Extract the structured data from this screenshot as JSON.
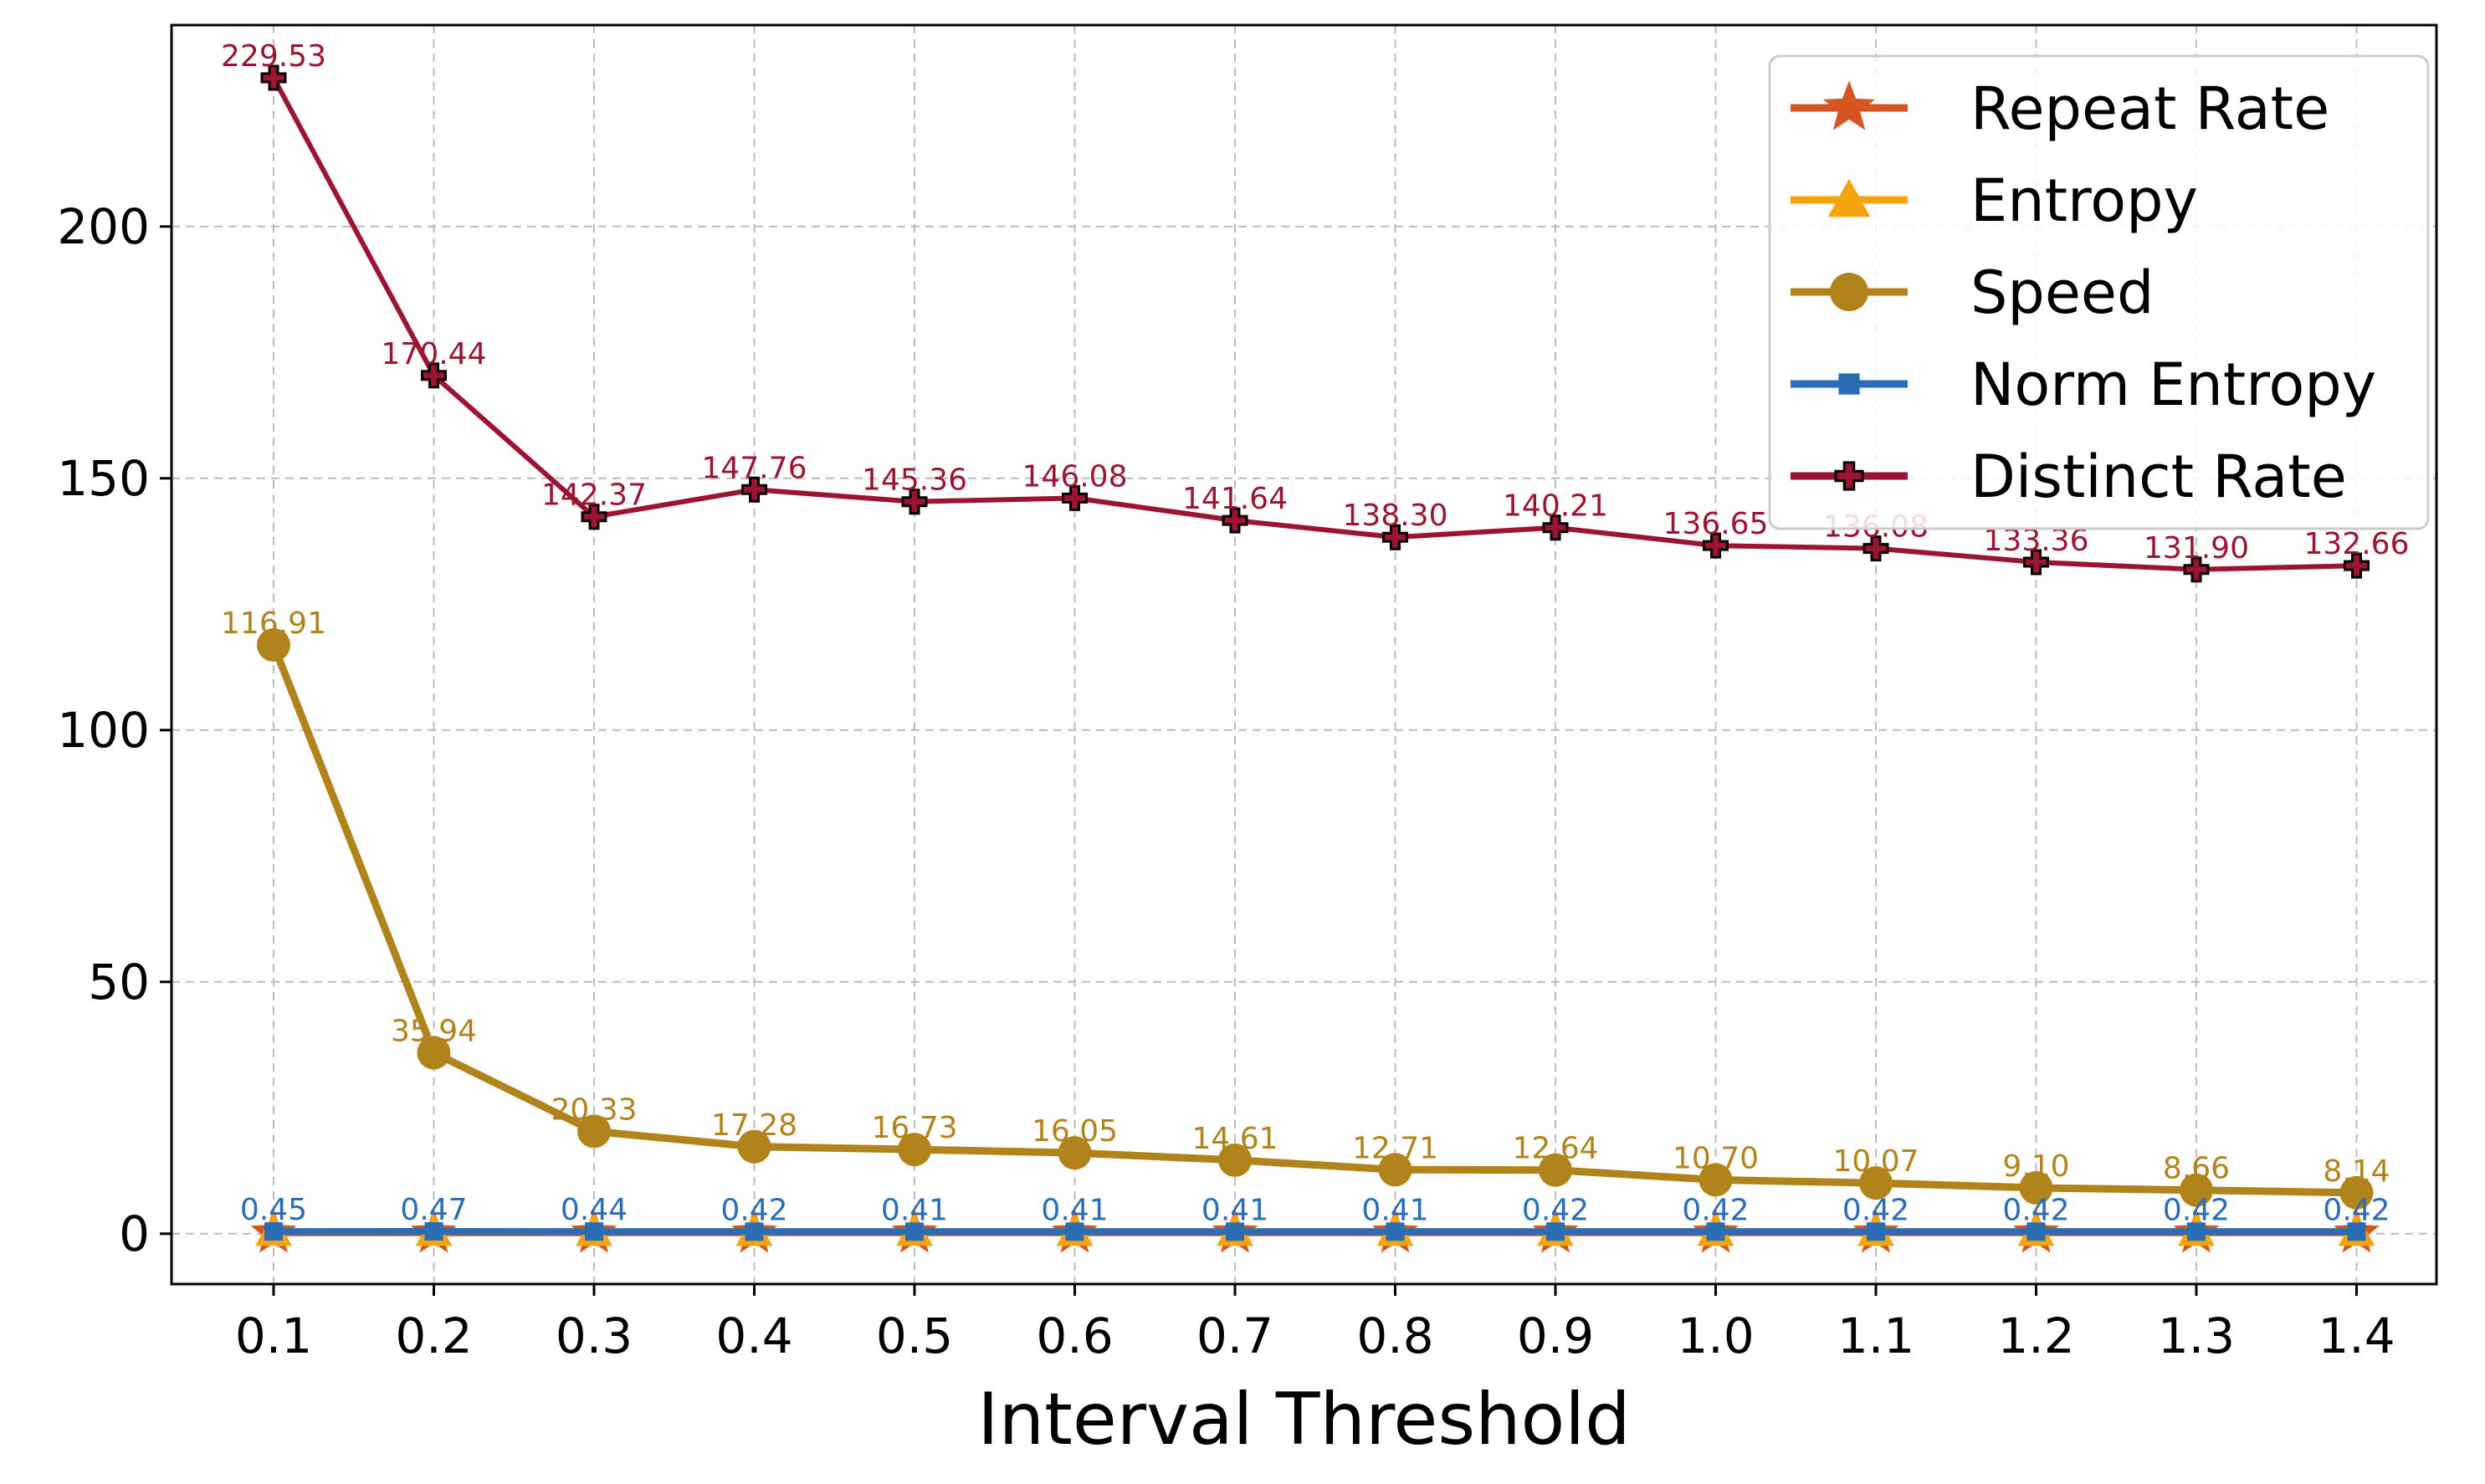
{
  "chart_data": {
    "type": "line",
    "title": "",
    "xlabel": "Interval Threshold",
    "ylabel": "",
    "x": [
      "0.1",
      "0.2",
      "0.3",
      "0.4",
      "0.5",
      "0.6",
      "0.7",
      "0.8",
      "0.9",
      "1.0",
      "1.1",
      "1.2",
      "1.3",
      "1.4"
    ],
    "ylim": [
      -10,
      240
    ],
    "yticks": [
      "0",
      "50",
      "100",
      "150",
      "200"
    ],
    "grid": true,
    "legend_position": "top-right",
    "series": [
      {
        "name": "Repeat Rate",
        "color": "#d5541f",
        "marker": "star",
        "values": [
          0.1,
          0.1,
          0.1,
          0.1,
          0.1,
          0.1,
          0.1,
          0.1,
          0.1,
          0.1,
          0.1,
          0.1,
          0.1,
          0.1
        ],
        "labels": []
      },
      {
        "name": "Entropy",
        "color": "#f5a30f",
        "marker": "triangle",
        "values": [
          0.5,
          0.5,
          0.5,
          0.5,
          0.5,
          0.5,
          0.5,
          0.5,
          0.5,
          0.5,
          0.5,
          0.5,
          0.5,
          0.5
        ],
        "labels": []
      },
      {
        "name": "Speed",
        "color": "#b0841a",
        "marker": "circle",
        "values": [
          116.91,
          35.94,
          20.33,
          17.28,
          16.73,
          16.05,
          14.61,
          12.71,
          12.64,
          10.7,
          10.07,
          9.1,
          8.66,
          8.14
        ],
        "labels": [
          "116.91",
          "35.94",
          "20.33",
          "17.28",
          "16.73",
          "16.05",
          "14.61",
          "12.71",
          "12.64",
          "10.70",
          "10.07",
          "9.10",
          "8.66",
          "8.14"
        ]
      },
      {
        "name": "Norm Entropy",
        "color": "#2a6db5",
        "marker": "square",
        "values": [
          0.45,
          0.47,
          0.44,
          0.42,
          0.41,
          0.41,
          0.41,
          0.41,
          0.42,
          0.42,
          0.42,
          0.42,
          0.42,
          0.42
        ],
        "labels": [
          "0.45",
          "0.47",
          "0.44",
          "0.42",
          "0.41",
          "0.41",
          "0.41",
          "0.41",
          "0.42",
          "0.42",
          "0.42",
          "0.42",
          "0.42",
          "0.42"
        ]
      },
      {
        "name": "Distinct Rate",
        "color": "#9b1533",
        "marker": "plus",
        "values": [
          229.53,
          170.44,
          142.37,
          147.76,
          145.36,
          146.08,
          141.64,
          138.3,
          140.21,
          136.65,
          136.08,
          133.36,
          131.9,
          132.66
        ],
        "labels": [
          "229.53",
          "170.44",
          "142.37",
          "147.76",
          "145.36",
          "146.08",
          "141.64",
          "138.30",
          "140.21",
          "136.65",
          "136.08",
          "133.36",
          "131.90",
          "132.66"
        ]
      }
    ]
  }
}
